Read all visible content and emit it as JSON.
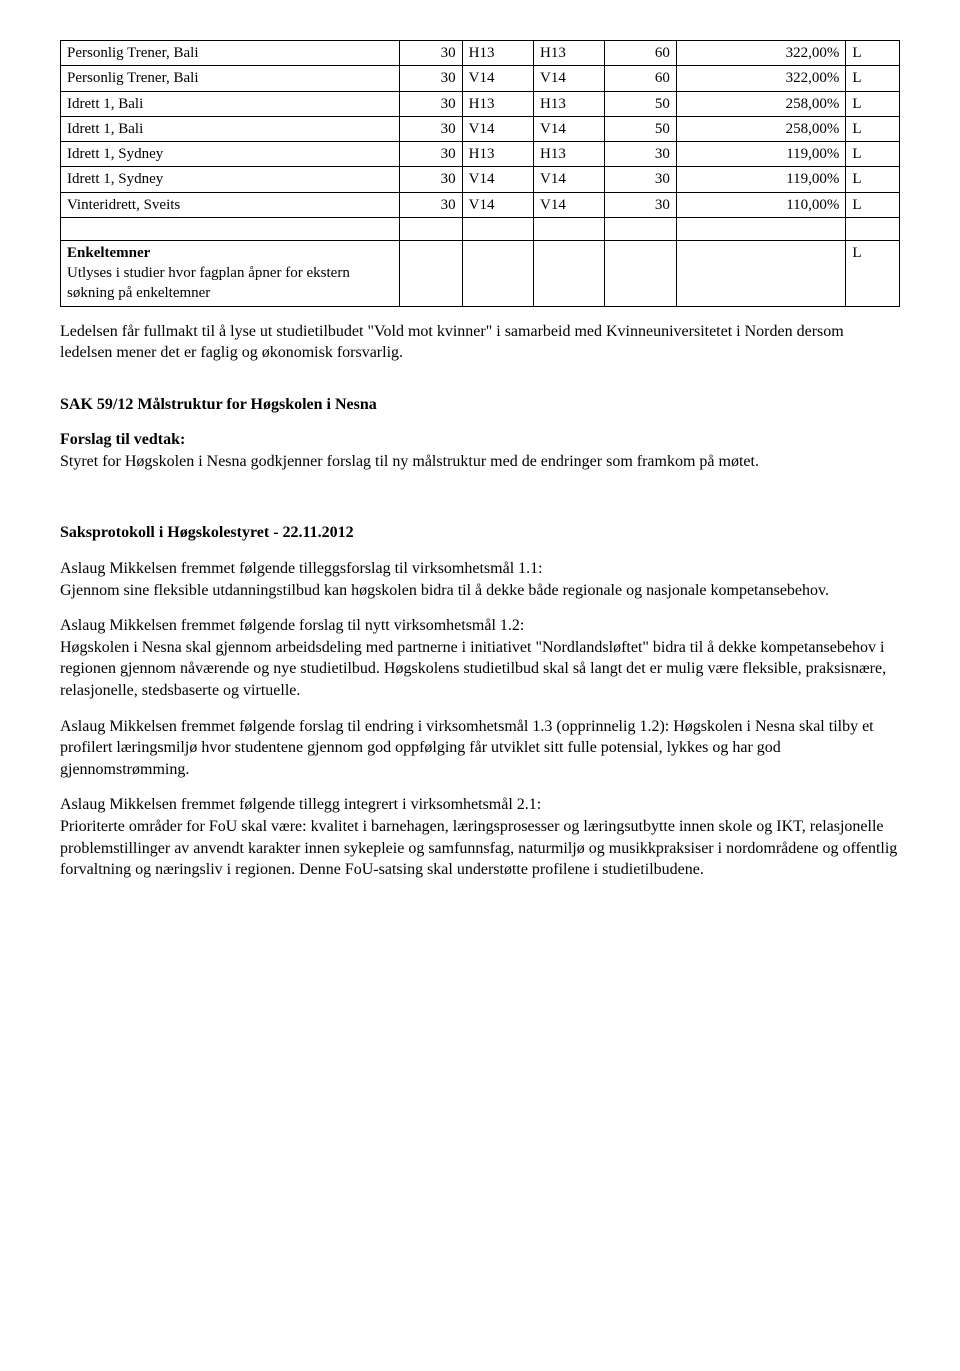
{
  "table": {
    "rows": [
      {
        "name": "Personlig Trener, Bali",
        "num": "30",
        "s1": "H13",
        "s2": "H13",
        "cap": "60",
        "pct": "322,00%",
        "flag": "L"
      },
      {
        "name": "Personlig Trener, Bali",
        "num": "30",
        "s1": "V14",
        "s2": "V14",
        "cap": "60",
        "pct": "322,00%",
        "flag": "L"
      },
      {
        "name": "Idrett 1, Bali",
        "num": "30",
        "s1": "H13",
        "s2": "H13",
        "cap": "50",
        "pct": "258,00%",
        "flag": "L"
      },
      {
        "name": "Idrett 1, Bali",
        "num": "30",
        "s1": "V14",
        "s2": "V14",
        "cap": "50",
        "pct": "258,00%",
        "flag": "L"
      },
      {
        "name": "Idrett 1, Sydney",
        "num": "30",
        "s1": "H13",
        "s2": "H13",
        "cap": "30",
        "pct": "119,00%",
        "flag": "L"
      },
      {
        "name": "Idrett 1, Sydney",
        "num": "30",
        "s1": "V14",
        "s2": "V14",
        "cap": "30",
        "pct": "119,00%",
        "flag": "L"
      },
      {
        "name": "Vinteridrett, Sveits",
        "num": "30",
        "s1": "V14",
        "s2": "V14",
        "cap": "30",
        "pct": "110,00%",
        "flag": "L"
      }
    ],
    "enkelt_title": "Enkeltemner",
    "enkelt_sub1": "Utlyses i studier hvor fagplan åpner for ekstern",
    "enkelt_sub2": "søkning på enkeltemner",
    "enkelt_flag": "L"
  },
  "p_ledelsen": "Ledelsen får fullmakt til å lyse ut studietilbudet \"Vold mot kvinner\" i samarbeid med Kvinneuniversitetet i Norden dersom ledelsen mener det er faglig og økonomisk forsvarlig.",
  "sak59": {
    "title": "SAK 59/12 Målstruktur for Høgskolen i Nesna",
    "forslag_label": "Forslag til vedtak:",
    "forslag_text": "Styret for Høgskolen i Nesna godkjenner forslag til ny målstruktur med de endringer som framkom på møtet.",
    "protokoll_title": "Saksprotokoll i Høgskolestyret - 22.11.2012",
    "p1": "Aslaug Mikkelsen fremmet følgende tilleggsforslag til virksomhetsmål 1.1:\nGjennom sine fleksible utdanningstilbud kan høgskolen bidra til å dekke både regionale og nasjonale kompetansebehov.",
    "p2": "Aslaug Mikkelsen fremmet følgende forslag til nytt virksomhetsmål 1.2:\nHøgskolen i Nesna skal gjennom arbeidsdeling med partnerne i initiativet \"Nordlandsløftet\" bidra til å dekke kompetansebehov i regionen gjennom nåværende og nye studietilbud. Høgskolens studietilbud skal så langt det er mulig være fleksible, praksisnære, relasjonelle, stedsbaserte og virtuelle.",
    "p3": "Aslaug Mikkelsen fremmet følgende forslag til endring i virksomhetsmål 1.3 (opprinnelig 1.2): Høgskolen i Nesna skal tilby et profilert læringsmiljø hvor studentene gjennom god oppfølging får utviklet sitt fulle potensial, lykkes og har god gjennomstrømming.",
    "p4": "Aslaug Mikkelsen fremmet følgende tillegg integrert i virksomhetsmål 2.1:\nPrioriterte områder for FoU skal være: kvalitet i barnehagen, læringsprosesser og læringsutbytte innen skole og IKT, relasjonelle problemstillinger av anvendt karakter innen sykepleie og samfunnsfag, naturmiljø og musikkpraksiser i nordområdene og offentlig forvaltning og næringsliv i regionen. Denne FoU-satsing skal understøtte profilene i studietilbudene."
  }
}
